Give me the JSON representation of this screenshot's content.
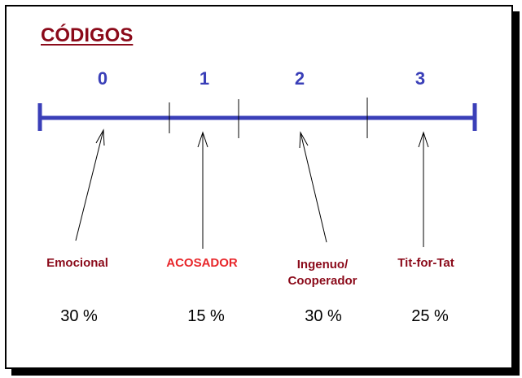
{
  "title": "CÓDIGOS",
  "codes": [
    "0",
    "1",
    "2",
    "3"
  ],
  "categories": [
    {
      "line1": "Emocional",
      "line2": "",
      "percent": "30 %"
    },
    {
      "line1": "ACOSADOR",
      "line2": "",
      "percent": "15 %"
    },
    {
      "line1": "Ingenuo/",
      "line2": "Cooperador",
      "percent": "30 %"
    },
    {
      "line1": "Tit-for-Tat",
      "line2": "",
      "percent": "25 %"
    }
  ],
  "colors": {
    "title": "#8b0a1a",
    "axis": "#3a3fb8",
    "label": "#8b0a1a",
    "highlight": "#e8262a"
  }
}
